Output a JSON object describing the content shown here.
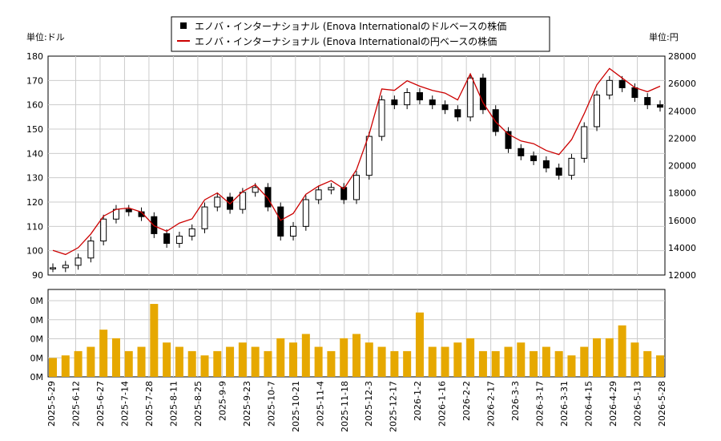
{
  "chart_data": [
    {
      "type": "candlestick",
      "legend": [
        {
          "label": "エノバ・インターナショナル (Enova Internationalのドルベースの株価",
          "color": "#000000",
          "marker": "square"
        },
        {
          "label": "エノバ・インターナショナル (Enova Internationalの円ベースの株価",
          "color": "#cc0000",
          "marker": "line"
        }
      ],
      "y_left_unit": "単位:ドル",
      "y_right_unit": "単位:円",
      "y_left_ticks": [
        90,
        100,
        110,
        120,
        130,
        140,
        150,
        160,
        170,
        180
      ],
      "y_right_ticks": [
        12000,
        14000,
        16000,
        18000,
        20000,
        22000,
        24000,
        26000,
        28000
      ],
      "ylim_left": [
        90,
        180
      ],
      "ylim_right": [
        12000,
        28000
      ],
      "grid": true,
      "usd_close_weekly": [
        93,
        94,
        97,
        104,
        113,
        117,
        116,
        114,
        107,
        103,
        106,
        109,
        118,
        122,
        117,
        124,
        126,
        118,
        106,
        110,
        121,
        125,
        126,
        121,
        131,
        147,
        162,
        160,
        165,
        162,
        160,
        158,
        155,
        171,
        158,
        149,
        142,
        139,
        137,
        134,
        131,
        138,
        151,
        164,
        170,
        167,
        163,
        160,
        159
      ],
      "jpy_close_weekly": [
        13800,
        13500,
        14000,
        15000,
        16300,
        16800,
        16900,
        16600,
        15600,
        15200,
        15800,
        16100,
        17500,
        18000,
        17200,
        18100,
        18600,
        17600,
        16000,
        16500,
        17900,
        18500,
        18900,
        18300,
        19700,
        22300,
        25600,
        25500,
        26200,
        25800,
        25500,
        25300,
        24800,
        26700,
        24600,
        23200,
        22300,
        21800,
        21600,
        21100,
        20800,
        21900,
        23800,
        25900,
        27100,
        26400,
        25700,
        25400,
        25800
      ]
    },
    {
      "type": "bar",
      "y_ticks": [
        "0M",
        "0M",
        "0M",
        "0M",
        "0M"
      ],
      "x_ticks": [
        "2025-5-29",
        "2025-6-12",
        "2025-6-27",
        "2025-7-14",
        "2025-7-28",
        "2025-8-11",
        "2025-8-25",
        "2025-9-9",
        "2025-9-23",
        "2025-10-7",
        "2025-10-21",
        "2025-11-4",
        "2025-11-18",
        "2025-12-3",
        "2025-12-17",
        "2026-1-2",
        "2026-1-16",
        "2026-2-2",
        "2026-2-17",
        "2026-3-3",
        "2026-3-17",
        "2026-3-31",
        "2026-4-15",
        "2026-4-29",
        "2026-5-13",
        "2026-5-28"
      ],
      "color": "#e6a800",
      "volume_weekly_relative": [
        0.22,
        0.25,
        0.3,
        0.35,
        0.55,
        0.45,
        0.3,
        0.35,
        0.85,
        0.4,
        0.35,
        0.3,
        0.25,
        0.3,
        0.35,
        0.4,
        0.35,
        0.3,
        0.45,
        0.4,
        0.5,
        0.35,
        0.3,
        0.45,
        0.5,
        0.4,
        0.35,
        0.3,
        0.3,
        0.75,
        0.35,
        0.35,
        0.4,
        0.45,
        0.3,
        0.3,
        0.35,
        0.4,
        0.3,
        0.35,
        0.3,
        0.25,
        0.35,
        0.45,
        0.45,
        0.6,
        0.4,
        0.3,
        0.25
      ]
    }
  ]
}
